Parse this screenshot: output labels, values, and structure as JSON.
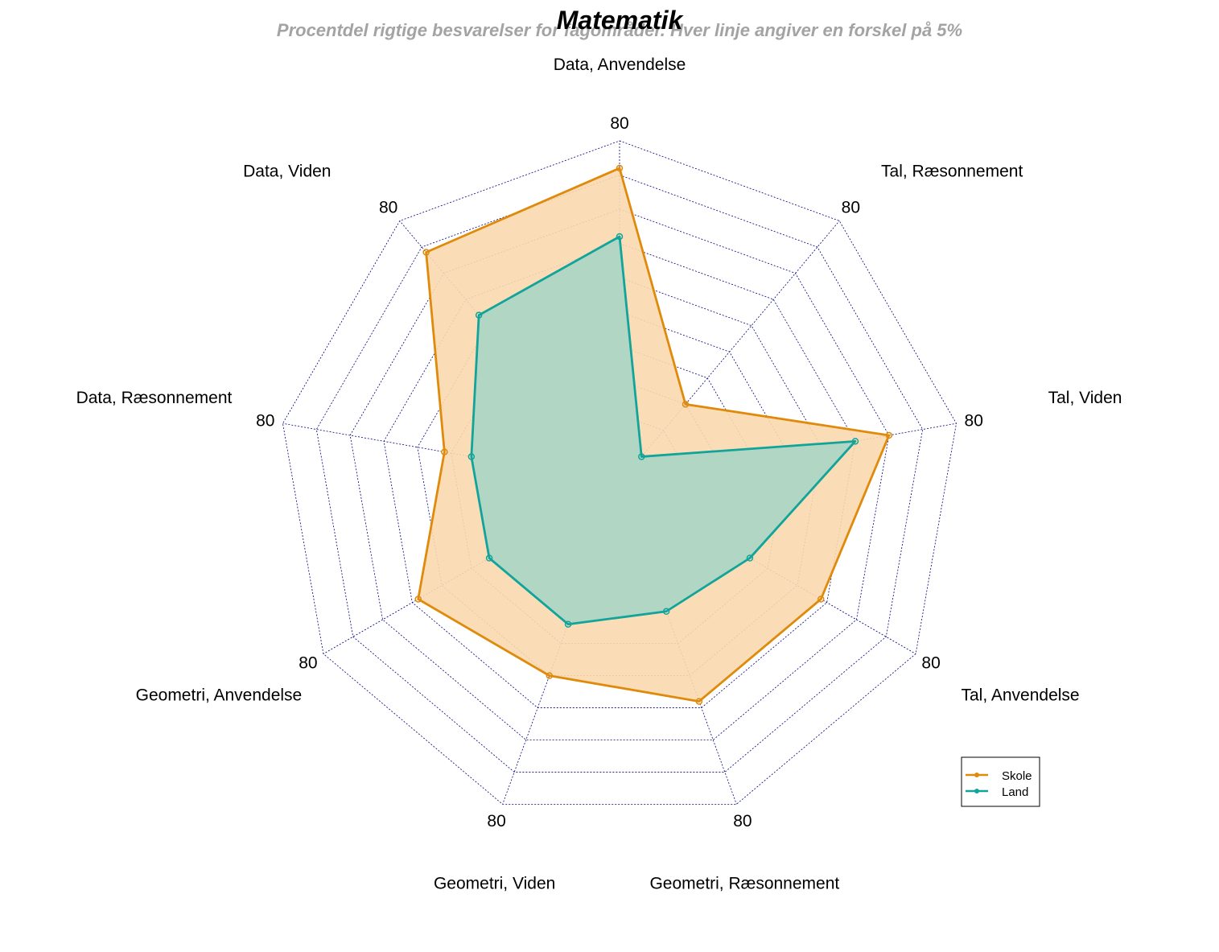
{
  "chart_data": {
    "type": "radar",
    "title": "Matematik",
    "subtitle": "Procentdel rigtige besvarelser for fagområder. Hver linje angiver en forskel på 5%",
    "axes": [
      "Data, Anvendelse",
      "Tal, Ræsonnement",
      "Tal, Viden",
      "Tal, Anvendelse",
      "Geometri, Ræsonnement",
      "Geometri, Viden",
      "Geometri, Anvendelse",
      "Data, Ræsonnement",
      "Data, Viden"
    ],
    "tick_label": "80",
    "rlim": [
      30,
      80
    ],
    "grid_step": 5,
    "series": [
      {
        "name": "Skole",
        "color": "#e08a0b",
        "fill": "#f9d9af",
        "values": [
          76,
          45,
          70,
          64,
          64,
          60,
          64,
          56,
          74
        ]
      },
      {
        "name": "Land",
        "color": "#12a39b",
        "fill": "#a9d6c5",
        "values": [
          66,
          35,
          65,
          52,
          50,
          52,
          52,
          52,
          62
        ]
      }
    ],
    "legend_position": "bottom-right",
    "grid": true
  }
}
